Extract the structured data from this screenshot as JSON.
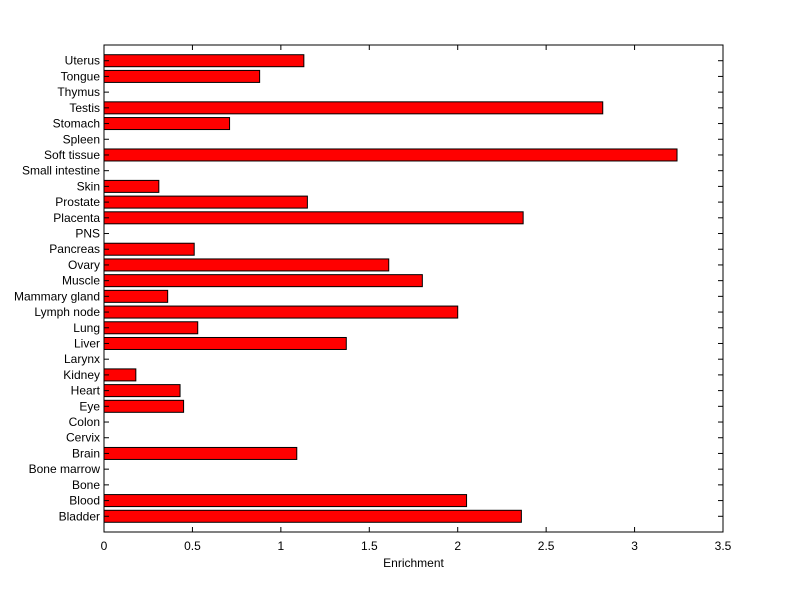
{
  "chart_data": {
    "type": "bar",
    "orientation": "horizontal",
    "title": "",
    "xlabel": "Enrichment",
    "ylabel": "",
    "xlim": [
      0,
      3.5
    ],
    "xticks": [
      "0",
      "0.5",
      "1",
      "1.5",
      "2",
      "2.5",
      "3",
      "3.5"
    ],
    "grid": false,
    "bar_color": "#ff0000",
    "edge_color": "#000000",
    "categories": [
      "Bladder",
      "Blood",
      "Bone",
      "Bone marrow",
      "Brain",
      "Cervix",
      "Colon",
      "Eye",
      "Heart",
      "Kidney",
      "Larynx",
      "Liver",
      "Lung",
      "Lymph node",
      "Mammary gland",
      "Muscle",
      "Ovary",
      "Pancreas",
      "PNS",
      "Placenta",
      "Prostate",
      "Skin",
      "Small intestine",
      "Soft tissue",
      "Spleen",
      "Stomach",
      "Testis",
      "Thymus",
      "Tongue",
      "Uterus"
    ],
    "values": [
      2.36,
      2.05,
      0,
      0,
      1.09,
      0,
      0,
      0.45,
      0.43,
      0.18,
      0,
      1.37,
      0.53,
      2.0,
      0.36,
      1.8,
      1.61,
      0.51,
      0,
      2.37,
      1.15,
      0.31,
      0,
      3.24,
      0,
      0.71,
      2.82,
      0,
      0.88,
      1.13
    ]
  }
}
